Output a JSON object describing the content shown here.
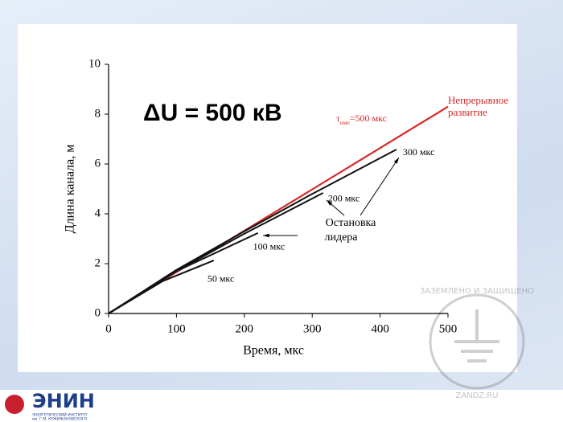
{
  "chart_data": {
    "type": "line",
    "xlabel": "Время,  мкс",
    "ylabel": "Длина канала,  м",
    "xlim": [
      0,
      500
    ],
    "xticks": [
      0,
      100,
      200,
      300,
      400,
      500
    ],
    "ylim": [
      0,
      10
    ],
    "yticks": [
      0,
      2,
      4,
      6,
      8,
      10
    ],
    "annotations": [
      "ΔU = 500 кВ"
    ],
    "tau_label": {
      "symbol": "τ",
      "subscript": "имп",
      "text": "=500 мкс"
    },
    "stop_label": [
      "Остановка",
      "лидера"
    ],
    "series": [
      {
        "name": "Непрерывное развитие",
        "color": "#d62a2a",
        "x": [
          0,
          500
        ],
        "values": [
          0,
          8.3
        ]
      },
      {
        "name": "300 мкс",
        "color": "#111111",
        "x": [
          0,
          100,
          200,
          300,
          424
        ],
        "values": [
          0,
          1.75,
          3.3,
          4.8,
          6.58
        ]
      },
      {
        "name": "200 мкс",
        "color": "#111111",
        "x": [
          0,
          100,
          200,
          316
        ],
        "values": [
          0,
          1.7,
          3.2,
          4.84
        ]
      },
      {
        "name": "100 мкс",
        "color": "#111111",
        "x": [
          0,
          100,
          220
        ],
        "values": [
          0,
          1.7,
          3.23
        ]
      },
      {
        "name": "50 мкс",
        "color": "#111111",
        "x": [
          0,
          80,
          155
        ],
        "values": [
          0,
          1.3,
          2.13
        ]
      }
    ]
  },
  "logo": {
    "title": "ЭНИН",
    "subtitle": [
      "ЭНЕРГЕТИЧЕСКИЙ ИНСТИТУТ",
      "им. Г.М. КРЖИЖАНОВСКОГО"
    ]
  },
  "watermark": {
    "text": "ЗАЗЕМЛЕНО И ЗАЩИЩЕНО",
    "site": "ZANDZ.RU"
  }
}
